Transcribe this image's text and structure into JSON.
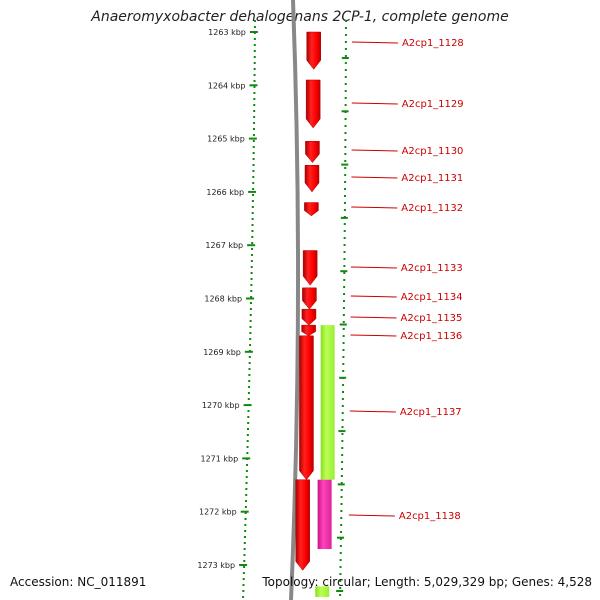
{
  "title": "Anaeromyxobacter dehalogenans 2CP-1, complete genome",
  "accession": "Accession: NC_011891",
  "topology": "Topology: circular; Length: 5,029,329 bp; Genes: 4,528",
  "colors": {
    "gene_forward": "#ff0000",
    "feature_green": "#aaff33",
    "feature_magenta": "#ff33aa",
    "label": "#cc0000",
    "ruler": "#118811",
    "backbone": "#888888"
  },
  "scale_ticks": [
    {
      "label": "1263 kbp",
      "kbp": 1263
    },
    {
      "label": "1264 kbp",
      "kbp": 1264
    },
    {
      "label": "1265 kbp",
      "kbp": 1265
    },
    {
      "label": "1266 kbp",
      "kbp": 1266
    },
    {
      "label": "1267 kbp",
      "kbp": 1267
    },
    {
      "label": "1268 kbp",
      "kbp": 1268
    },
    {
      "label": "1269 kbp",
      "kbp": 1269
    },
    {
      "label": "1270 kbp",
      "kbp": 1270
    },
    {
      "label": "1271 kbp",
      "kbp": 1271
    },
    {
      "label": "1272 kbp",
      "kbp": 1272
    },
    {
      "label": "1273 kbp",
      "kbp": 1273
    }
  ],
  "genes": [
    {
      "name": "A2cp1_1128",
      "start_kbp": 1263.0,
      "end_kbp": 1263.7
    },
    {
      "name": "A2cp1_1129",
      "start_kbp": 1263.9,
      "end_kbp": 1264.8
    },
    {
      "name": "A2cp1_1130",
      "start_kbp": 1265.05,
      "end_kbp": 1265.45
    },
    {
      "name": "A2cp1_1131",
      "start_kbp": 1265.5,
      "end_kbp": 1266.0
    },
    {
      "name": "A2cp1_1132",
      "start_kbp": 1266.2,
      "end_kbp": 1266.45
    },
    {
      "name": "A2cp1_1133",
      "start_kbp": 1267.1,
      "end_kbp": 1267.75
    },
    {
      "name": "A2cp1_1134",
      "start_kbp": 1267.8,
      "end_kbp": 1268.2
    },
    {
      "name": "A2cp1_1135",
      "start_kbp": 1268.2,
      "end_kbp": 1268.5
    },
    {
      "name": "A2cp1_1136",
      "start_kbp": 1268.5,
      "end_kbp": 1268.7
    },
    {
      "name": "A2cp1_1137",
      "start_kbp": 1268.7,
      "end_kbp": 1271.4
    },
    {
      "name": "A2cp1_1138",
      "start_kbp": 1271.4,
      "end_kbp": 1273.1
    }
  ],
  "features": [
    {
      "name": "green-feature",
      "start_kbp": 1268.5,
      "end_kbp": 1271.4,
      "color": "#aaff33"
    },
    {
      "name": "magenta-feature",
      "start_kbp": 1271.4,
      "end_kbp": 1272.7,
      "color": "#ff33aa"
    },
    {
      "name": "green-feature-2",
      "start_kbp": 1273.4,
      "end_kbp": 1273.6,
      "color": "#aaff33"
    }
  ]
}
